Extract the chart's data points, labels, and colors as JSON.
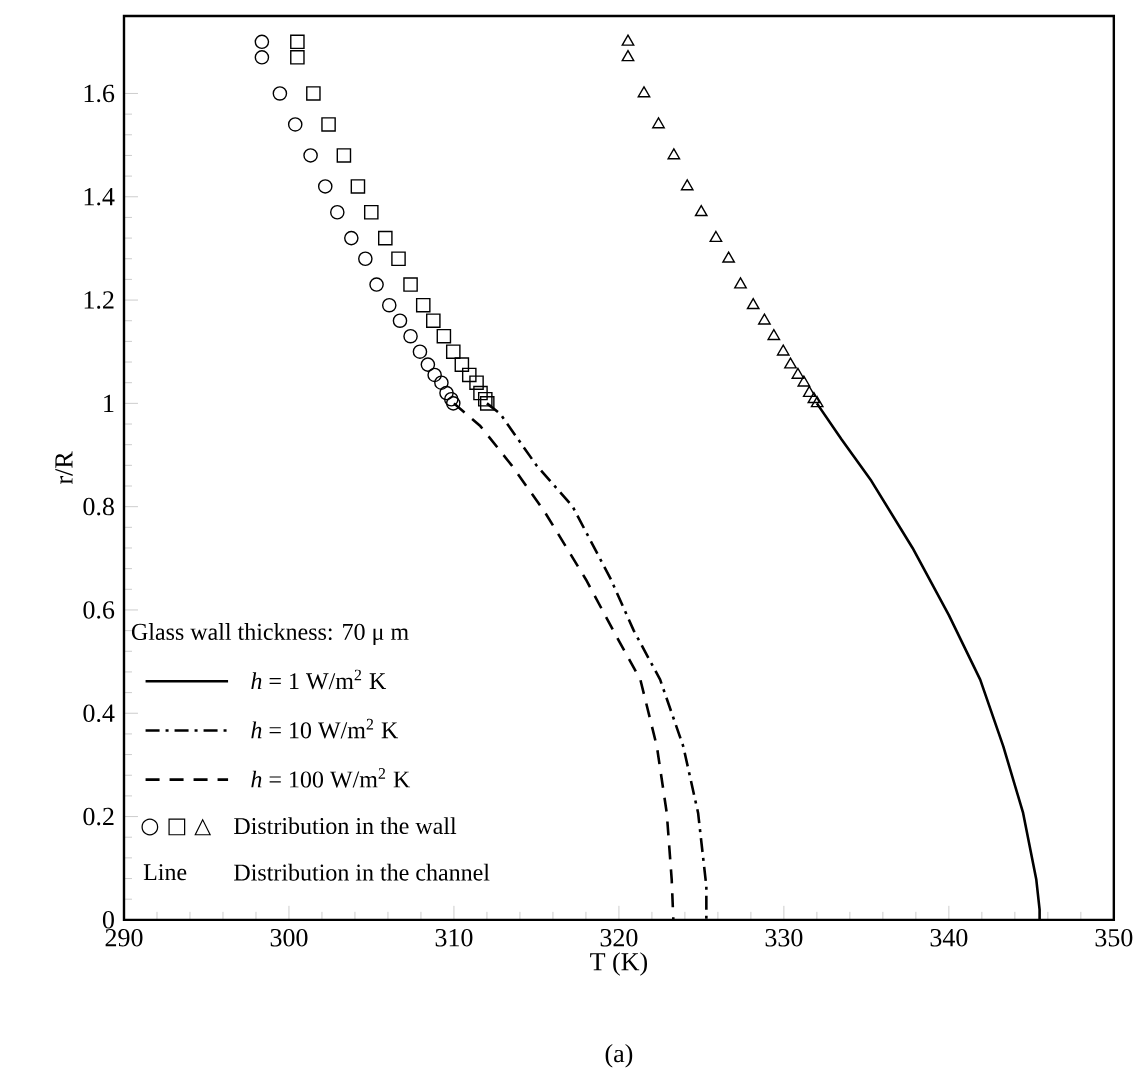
{
  "chart_data": {
    "type": "line",
    "xlabel": "T (K)",
    "ylabel": "r/R",
    "legend_title": "Glass wall thickness: 70 μ m",
    "xlim": [
      290,
      350
    ],
    "xticks": [
      290,
      300,
      310,
      320,
      330,
      340,
      350
    ],
    "ylim": [
      0,
      1.75
    ],
    "yticks": [
      0,
      0.2,
      0.4,
      0.6,
      0.8,
      1,
      1.2,
      1.4,
      1.6
    ],
    "grid": false,
    "legend": "left",
    "annotations": [
      "○ □ △",
      "Distribution in the wall",
      "Line",
      "Distribution in the channel",
      "(a)"
    ],
    "series": [
      {
        "name": "*h* =  1 W/m$^{2}$ K",
        "color": "#000000",
        "line_style": "solid",
        "marker": "none",
        "x": [
          332.0,
          333.5,
          335.3,
          337.8,
          340.0,
          341.9,
          343.3,
          344.5,
          345.3,
          345.5,
          345.5
        ],
        "values": [
          1.0,
          0.93,
          0.85,
          0.72,
          0.59,
          0.465,
          0.336,
          0.207,
          0.078,
          0.02,
          0
        ]
      },
      {
        "name": "*h* = 10 W/m$^{2}$ K",
        "color": "#000000",
        "line_style": "dashdot",
        "marker": "none",
        "x": [
          312.0,
          312.8,
          315.0,
          317.2,
          319.5,
          320.9,
          322.5,
          323.9,
          324.8,
          325.3,
          325.3
        ],
        "values": [
          1.0,
          0.98,
          0.88,
          0.8,
          0.66,
          0.56,
          0.465,
          0.336,
          0.207,
          0.065,
          0
        ]
      },
      {
        "name": "*h* = 100 W/m$^{2}$ K",
        "color": "#000000",
        "line_style": "dashed",
        "marker": "none",
        "x": [
          310.0,
          311.6,
          313.5,
          315.5,
          318.0,
          320.0,
          321.3,
          322.3,
          322.9,
          323.2,
          323.3
        ],
        "values": [
          1.0,
          0.956,
          0.88,
          0.79,
          0.659,
          0.54,
          0.465,
          0.336,
          0.207,
          0.078,
          0
        ]
      },
      {
        "type": "scatter",
        "color": "#000000",
        "marker": "circle",
        "x": [
          298.36,
          298.36,
          299.45,
          300.38,
          301.31,
          302.2,
          302.93,
          303.78,
          304.63,
          305.31,
          306.08,
          306.73,
          307.37,
          307.94,
          308.42,
          308.83,
          309.24,
          309.55,
          309.84,
          309.96
        ],
        "values": [
          1.7,
          1.67,
          1.6,
          1.54,
          1.48,
          1.42,
          1.37,
          1.32,
          1.28,
          1.23,
          1.19,
          1.16,
          1.13,
          1.1,
          1.075,
          1.055,
          1.04,
          1.02,
          1.008,
          1.0
        ]
      },
      {
        "type": "scatter",
        "color": "#000000",
        "marker": "square",
        "x": [
          300.51,
          300.51,
          301.48,
          302.4,
          303.33,
          304.18,
          304.99,
          305.84,
          306.64,
          307.37,
          308.14,
          308.75,
          309.39,
          309.96,
          310.48,
          310.93,
          311.37,
          311.61,
          311.9,
          312.02
        ],
        "values": [
          1.7,
          1.67,
          1.6,
          1.54,
          1.48,
          1.42,
          1.37,
          1.32,
          1.28,
          1.23,
          1.19,
          1.16,
          1.13,
          1.1,
          1.075,
          1.055,
          1.04,
          1.02,
          1.008,
          1.0
        ]
      },
      {
        "type": "scatter",
        "color": "#000000",
        "marker": "triangle",
        "x": [
          320.55,
          320.55,
          321.52,
          322.4,
          323.33,
          324.14,
          324.99,
          325.88,
          326.65,
          327.37,
          328.14,
          328.82,
          329.39,
          329.96,
          330.4,
          330.85,
          331.21,
          331.54,
          331.82,
          332.02
        ],
        "values": [
          1.7,
          1.67,
          1.6,
          1.54,
          1.48,
          1.42,
          1.37,
          1.32,
          1.28,
          1.23,
          1.19,
          1.16,
          1.13,
          1.1,
          1.075,
          1.055,
          1.04,
          1.02,
          1.008,
          1.0
        ]
      }
    ]
  }
}
